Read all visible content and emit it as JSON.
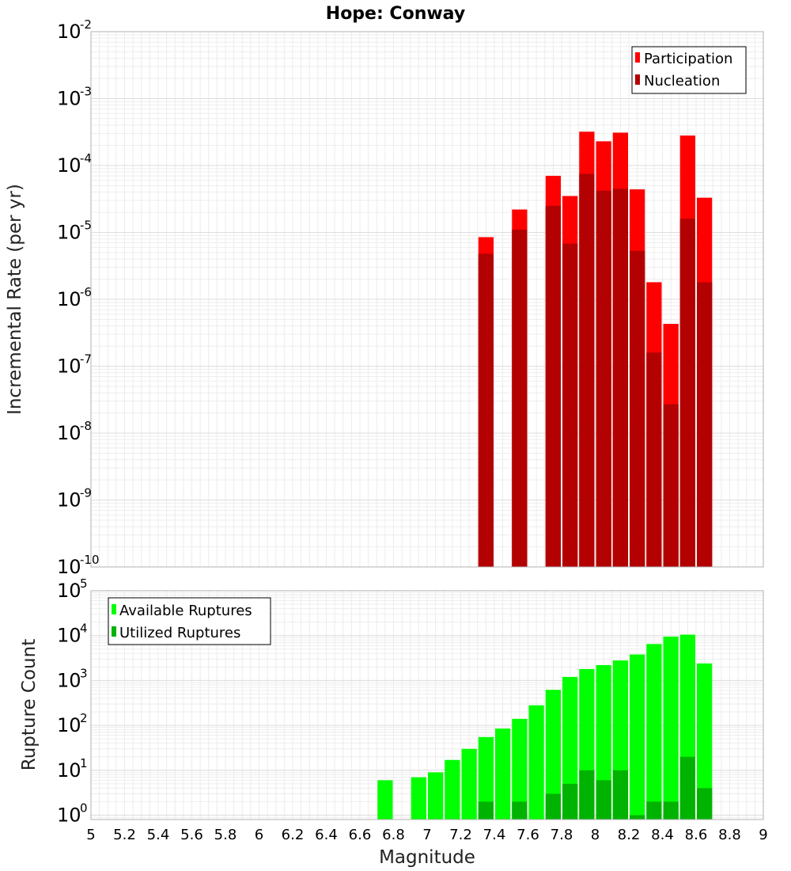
{
  "chart_data": [
    {
      "type": "bar",
      "title": "Hope: Conway",
      "xlabel": "Magnitude",
      "ylabel": "Incremental Rate (per yr)",
      "xlim": [
        5,
        9
      ],
      "ylim": [
        1e-10,
        0.01
      ],
      "yscale": "log",
      "grid": true,
      "legend_position": "top-right",
      "bin_width": 0.1,
      "series": [
        {
          "name": "Participation",
          "color": "#ff0000",
          "x": [
            7.35,
            7.55,
            7.75,
            7.85,
            7.95,
            8.05,
            8.15,
            8.25,
            8.35,
            8.45,
            8.55,
            8.65
          ],
          "values": [
            8.5e-06,
            2.2e-05,
            7e-05,
            3.5e-05,
            0.00032,
            0.00023,
            0.00031,
            4.4e-05,
            1.8e-06,
            4.3e-07,
            0.00028,
            3.3e-05
          ]
        },
        {
          "name": "Nucleation",
          "color": "#b30000",
          "x": [
            7.35,
            7.55,
            7.75,
            7.85,
            7.95,
            8.05,
            8.15,
            8.25,
            8.35,
            8.45,
            8.55,
            8.65
          ],
          "values": [
            4.8e-06,
            1.1e-05,
            2.5e-05,
            6.8e-06,
            7.5e-05,
            4.2e-05,
            4.5e-05,
            5.3e-06,
            1.6e-07,
            2.7e-08,
            1.6e-05,
            1.8e-06
          ]
        }
      ]
    },
    {
      "type": "bar",
      "xlabel": "Magnitude",
      "ylabel": "Rupture Count",
      "xlim": [
        5,
        9
      ],
      "ylim": [
        0.8,
        100000.0
      ],
      "yscale": "log",
      "grid": true,
      "legend_position": "top-left",
      "bin_width": 0.1,
      "series": [
        {
          "name": "Available Ruptures",
          "color": "#00ff00",
          "x": [
            6.75,
            6.95,
            7.05,
            7.15,
            7.25,
            7.35,
            7.45,
            7.55,
            7.65,
            7.75,
            7.85,
            7.95,
            8.05,
            8.15,
            8.25,
            8.35,
            8.45,
            8.55,
            8.65
          ],
          "values": [
            6,
            7,
            9,
            17,
            30,
            55,
            85,
            140,
            280,
            620,
            1200,
            1800,
            2200,
            2800,
            3800,
            6500,
            9500,
            10500,
            2400
          ]
        },
        {
          "name": "Utilized Ruptures",
          "color": "#00b300",
          "x": [
            7.35,
            7.55,
            7.75,
            7.85,
            7.95,
            8.05,
            8.15,
            8.25,
            8.35,
            8.45,
            8.55,
            8.65
          ],
          "values": [
            2,
            2,
            3,
            5,
            10,
            6,
            10,
            1,
            2,
            2,
            20,
            4
          ]
        }
      ]
    }
  ],
  "x_ticks": [
    "5",
    "5.2",
    "5.4",
    "5.6",
    "5.8",
    "6",
    "6.2",
    "6.4",
    "6.6",
    "6.8",
    "7",
    "7.2",
    "7.4",
    "7.6",
    "7.8",
    "8",
    "8.2",
    "8.4",
    "8.6",
    "8.8",
    "9"
  ],
  "top_y_exponents": [
    "-10",
    "-9",
    "-8",
    "-7",
    "-6",
    "-5",
    "-4",
    "-3",
    "-2"
  ],
  "bottom_y_exponents": [
    "0",
    "1",
    "2",
    "3",
    "4",
    "5"
  ],
  "y_tick_base": "10"
}
